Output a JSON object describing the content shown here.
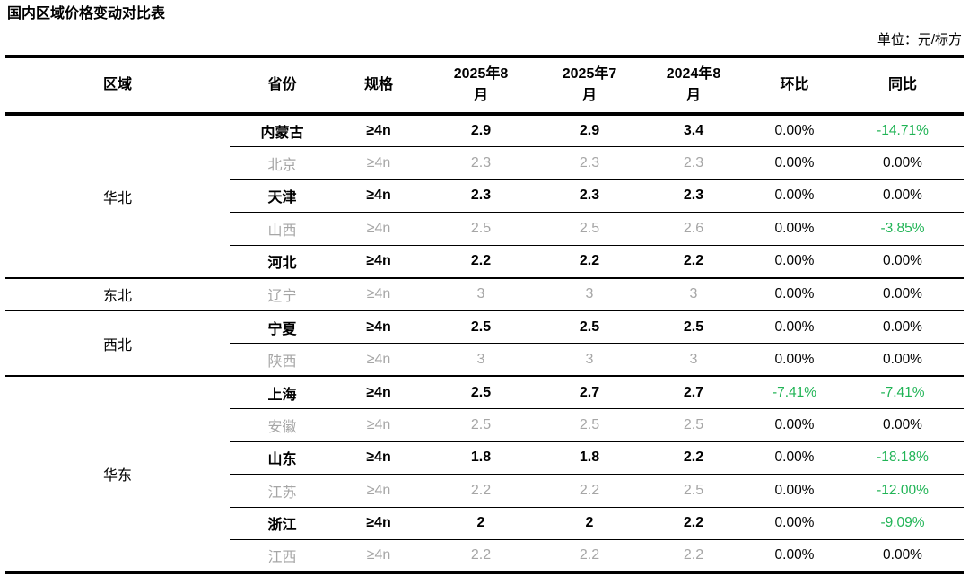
{
  "title": "国内区域价格变动对比表",
  "unit_label": "单位：元/标方",
  "colors": {
    "negative_green": "#21b456",
    "dim_gray": "#a6a6a6",
    "text_black": "#000000"
  },
  "table": {
    "columns": [
      "区域",
      "省份",
      "规格",
      "2025年8\n月",
      "2025年7\n月",
      "2024年8\n月",
      "环比",
      "同比"
    ],
    "regions": [
      {
        "name": "华北",
        "rows": [
          {
            "province": "内蒙古",
            "spec": "≥4n",
            "aug2025": "2.9",
            "jul2025": "2.9",
            "aug2024": "3.4",
            "mom": "0.00%",
            "yoy": "-14.71%",
            "emphasis": true
          },
          {
            "province": "北京",
            "spec": "≥4n",
            "aug2025": "2.3",
            "jul2025": "2.3",
            "aug2024": "2.3",
            "mom": "0.00%",
            "yoy": "0.00%",
            "emphasis": false
          },
          {
            "province": "天津",
            "spec": "≥4n",
            "aug2025": "2.3",
            "jul2025": "2.3",
            "aug2024": "2.3",
            "mom": "0.00%",
            "yoy": "0.00%",
            "emphasis": true
          },
          {
            "province": "山西",
            "spec": "≥4n",
            "aug2025": "2.5",
            "jul2025": "2.5",
            "aug2024": "2.6",
            "mom": "0.00%",
            "yoy": "-3.85%",
            "emphasis": false
          },
          {
            "province": "河北",
            "spec": "≥4n",
            "aug2025": "2.2",
            "jul2025": "2.2",
            "aug2024": "2.2",
            "mom": "0.00%",
            "yoy": "0.00%",
            "emphasis": true
          }
        ]
      },
      {
        "name": "东北",
        "rows": [
          {
            "province": "辽宁",
            "spec": "≥4n",
            "aug2025": "3",
            "jul2025": "3",
            "aug2024": "3",
            "mom": "0.00%",
            "yoy": "0.00%",
            "emphasis": false
          }
        ]
      },
      {
        "name": "西北",
        "rows": [
          {
            "province": "宁夏",
            "spec": "≥4n",
            "aug2025": "2.5",
            "jul2025": "2.5",
            "aug2024": "2.5",
            "mom": "0.00%",
            "yoy": "0.00%",
            "emphasis": true
          },
          {
            "province": "陕西",
            "spec": "≥4n",
            "aug2025": "3",
            "jul2025": "3",
            "aug2024": "3",
            "mom": "0.00%",
            "yoy": "0.00%",
            "emphasis": false
          }
        ]
      },
      {
        "name": "华东",
        "rows": [
          {
            "province": "上海",
            "spec": "≥4n",
            "aug2025": "2.5",
            "jul2025": "2.7",
            "aug2024": "2.7",
            "mom": "-7.41%",
            "yoy": "-7.41%",
            "emphasis": true
          },
          {
            "province": "安徽",
            "spec": "≥4n",
            "aug2025": "2.5",
            "jul2025": "2.5",
            "aug2024": "2.5",
            "mom": "0.00%",
            "yoy": "0.00%",
            "emphasis": false
          },
          {
            "province": "山东",
            "spec": "≥4n",
            "aug2025": "1.8",
            "jul2025": "1.8",
            "aug2024": "2.2",
            "mom": "0.00%",
            "yoy": "-18.18%",
            "emphasis": true
          },
          {
            "province": "江苏",
            "spec": "≥4n",
            "aug2025": "2.2",
            "jul2025": "2.2",
            "aug2024": "2.5",
            "mom": "0.00%",
            "yoy": "-12.00%",
            "emphasis": false
          },
          {
            "province": "浙江",
            "spec": "≥4n",
            "aug2025": "2",
            "jul2025": "2",
            "aug2024": "2.2",
            "mom": "0.00%",
            "yoy": "-9.09%",
            "emphasis": true
          },
          {
            "province": "江西",
            "spec": "≥4n",
            "aug2025": "2.2",
            "jul2025": "2.2",
            "aug2024": "2.2",
            "mom": "0.00%",
            "yoy": "0.00%",
            "emphasis": false
          }
        ]
      }
    ]
  }
}
